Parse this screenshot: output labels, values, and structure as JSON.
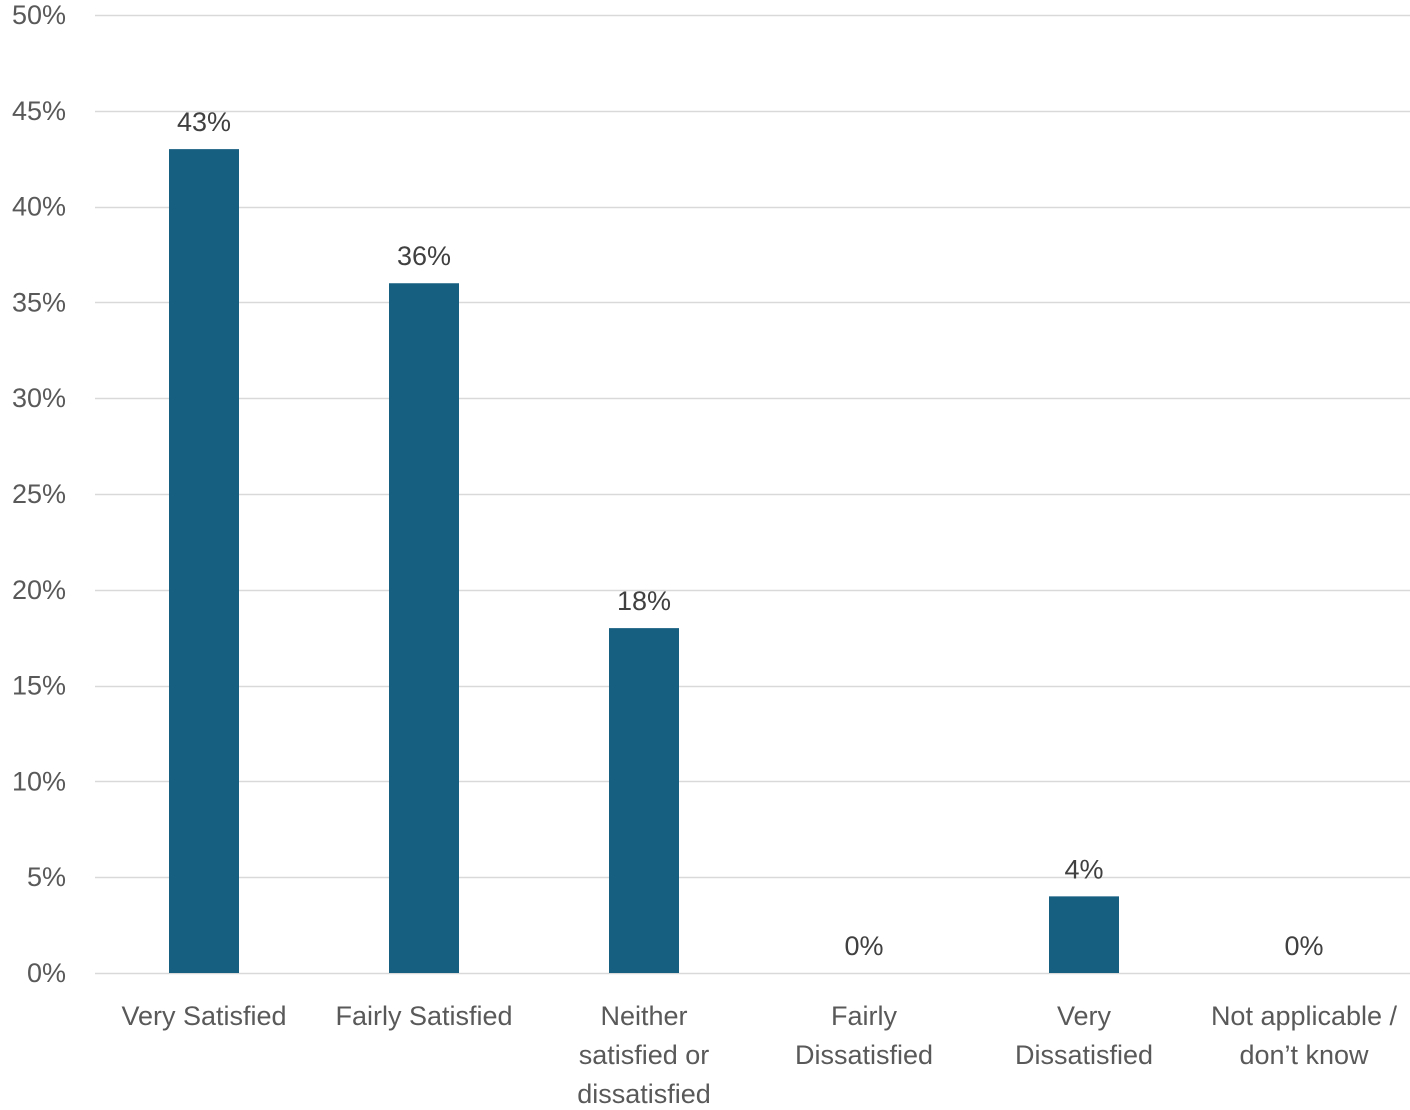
{
  "chart_data": {
    "type": "bar",
    "categories": [
      "Very Satisfied",
      "Fairly Satisfied",
      "Neither satisfied or dissatisfied",
      "Fairly Dissatisfied",
      "Very Dissatisfied",
      "Not applicable / don’t know"
    ],
    "category_label_lines": [
      [
        "Very Satisfied"
      ],
      [
        "Fairly Satisfied"
      ],
      [
        "Neither",
        "satisfied or",
        "dissatisfied"
      ],
      [
        "Fairly",
        "Dissatisfied"
      ],
      [
        "Very",
        "Dissatisfied"
      ],
      [
        "Not applicable /",
        "don’t know"
      ]
    ],
    "values": [
      43,
      36,
      18,
      0,
      4,
      0
    ],
    "data_labels": [
      "43%",
      "36%",
      "18%",
      "0%",
      "4%",
      "0%"
    ],
    "ylim": [
      0,
      50
    ],
    "y_ticks": [
      0,
      5,
      10,
      15,
      20,
      25,
      30,
      35,
      40,
      45,
      50
    ],
    "y_tick_labels": [
      "0%",
      "5%",
      "10%",
      "15%",
      "20%",
      "25%",
      "30%",
      "35%",
      "40%",
      "45%",
      "50%"
    ],
    "title": "",
    "xlabel": "",
    "ylabel": "",
    "grid": true,
    "legend": "none",
    "colors": {
      "bar": "#175f81",
      "grid": "#d9d9d9",
      "axis_text": "#595959",
      "data_label_text": "#404040"
    }
  }
}
